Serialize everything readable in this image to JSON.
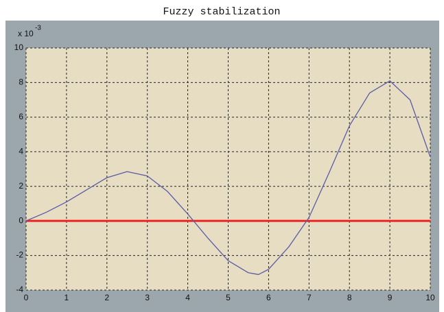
{
  "chart_data": {
    "type": "line",
    "title": "Fuzzy stabilization",
    "y_multiplier": {
      "base": "x 10",
      "exponent": "-3"
    },
    "series": [
      {
        "color": "#5a5aa8",
        "x": [
          0,
          0.5,
          1,
          1.5,
          2,
          2.5,
          3,
          3.5,
          4,
          4.5,
          5,
          5.5,
          5.75,
          6,
          6.5,
          7,
          7.5,
          8,
          8.5,
          9,
          9.5,
          10
        ],
        "values": [
          0,
          0.5,
          1.1,
          1.8,
          2.5,
          2.85,
          2.6,
          1.7,
          0.4,
          -1.0,
          -2.3,
          -3.0,
          -3.1,
          -2.8,
          -1.5,
          0.2,
          2.8,
          5.5,
          7.4,
          8.1,
          7.0,
          3.7
        ]
      },
      {
        "color": "#ee2222",
        "x": [
          0,
          10
        ],
        "values": [
          0,
          0
        ]
      }
    ],
    "xlim": [
      0,
      10
    ],
    "xticks": [
      0,
      1,
      2,
      3,
      4,
      5,
      6,
      7,
      8,
      9,
      10
    ],
    "ylim": [
      -4,
      10
    ],
    "yticks": [
      -4,
      -2,
      0,
      2,
      4,
      6,
      8,
      10
    ],
    "grid": true
  }
}
